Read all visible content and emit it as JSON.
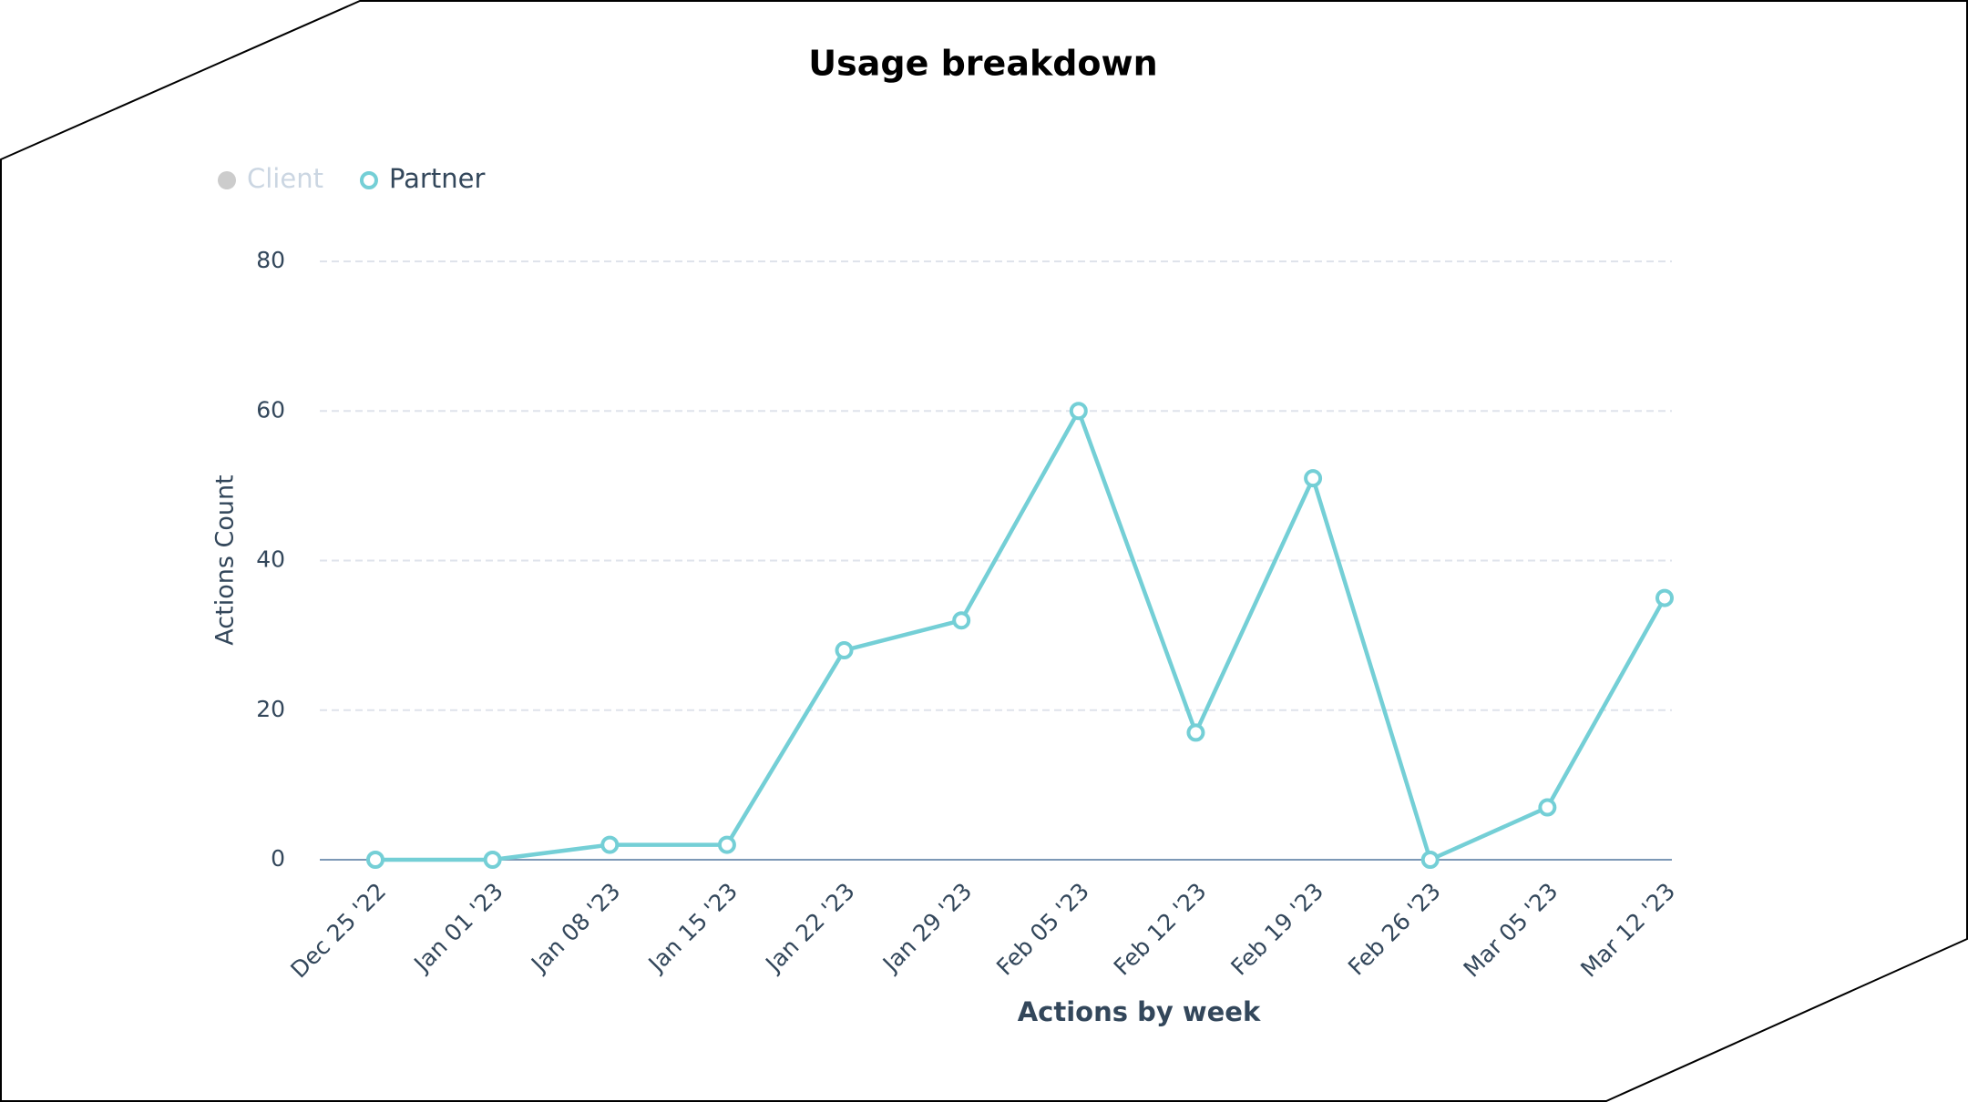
{
  "chart_data": {
    "type": "line",
    "title": "Usage breakdown",
    "xlabel": "Actions by week",
    "ylabel": "Actions Count",
    "categories": [
      "Dec 25 '22",
      "Jan 01 '23",
      "Jan 08 '23",
      "Jan 15 '23",
      "Jan 22 '23",
      "Jan 29 '23",
      "Feb 05 '23",
      "Feb 12 '23",
      "Feb 19 '23",
      "Feb 26 '23",
      "Mar 05 '23",
      "Mar 12 '23"
    ],
    "series": [
      {
        "name": "Client",
        "color": "#cccccc",
        "hidden": true,
        "values": [
          null,
          null,
          null,
          null,
          null,
          null,
          null,
          null,
          null,
          null,
          null,
          null
        ]
      },
      {
        "name": "Partner",
        "color": "#74cfd6",
        "values": [
          0,
          0,
          2,
          2,
          28,
          32,
          60,
          17,
          51,
          0,
          7,
          35
        ]
      }
    ],
    "ylim": [
      0,
      80
    ],
    "yticks": [
      0,
      20,
      40,
      60,
      80
    ],
    "grid": true
  }
}
